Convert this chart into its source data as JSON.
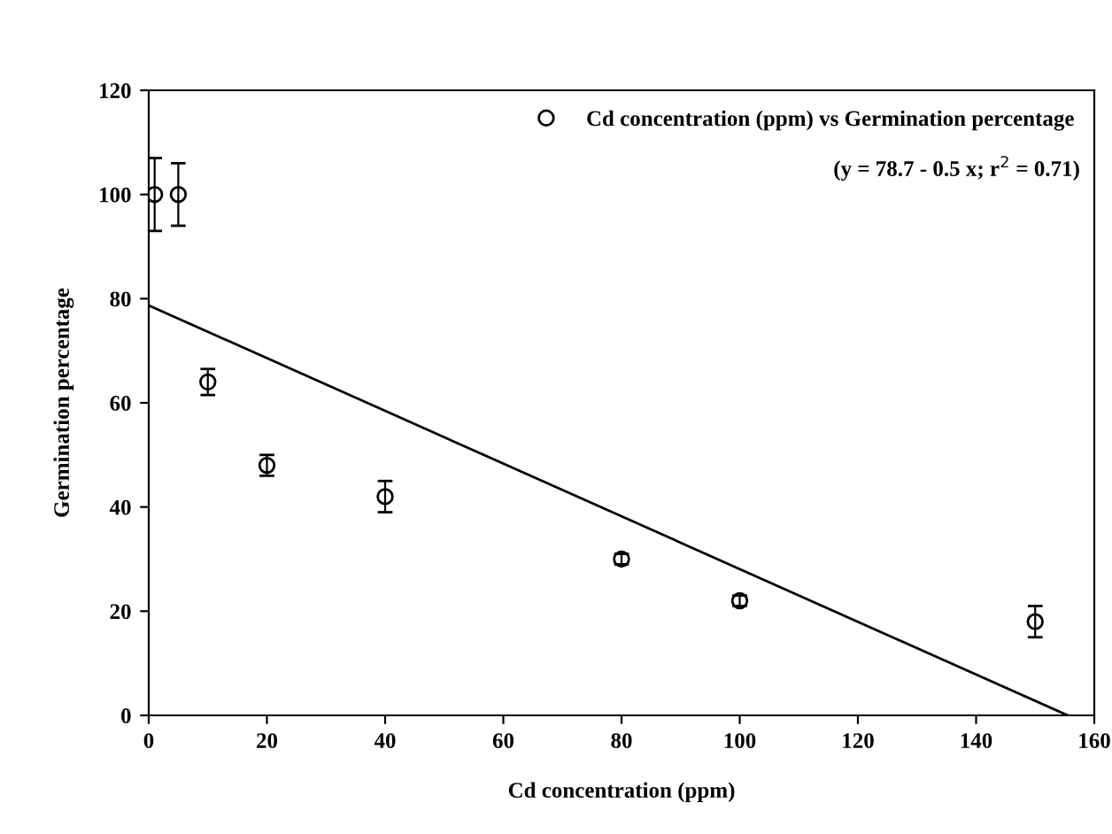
{
  "chart_data": {
    "type": "scatter",
    "xlabel": "Cd concentration (ppm)",
    "ylabel": "Germination percentage",
    "xlim": [
      0,
      160
    ],
    "ylim": [
      0,
      120
    ],
    "xticks": [
      0,
      20,
      40,
      60,
      80,
      100,
      120,
      140,
      160
    ],
    "yticks": [
      0,
      20,
      40,
      60,
      80,
      100,
      120
    ],
    "legend": "top right",
    "grid": false,
    "series": [
      {
        "name": "Cd concentration (ppm) vs Germination percentage",
        "marker": "circle",
        "color": "#000000",
        "x": [
          1,
          5,
          10,
          20,
          40,
          80,
          100,
          150
        ],
        "values": [
          100,
          100,
          64,
          48,
          42,
          30,
          22,
          18
        ],
        "errors": [
          7,
          6,
          2.5,
          2,
          3,
          1,
          1,
          3
        ]
      },
      {
        "type": "line",
        "color": "#000000",
        "x": [
          0,
          155.5
        ],
        "values": [
          78.7,
          0
        ]
      }
    ],
    "annotations": [
      "(y = 78.7 - 0.5 x; r$^{2}$ = 0.71)"
    ]
  }
}
